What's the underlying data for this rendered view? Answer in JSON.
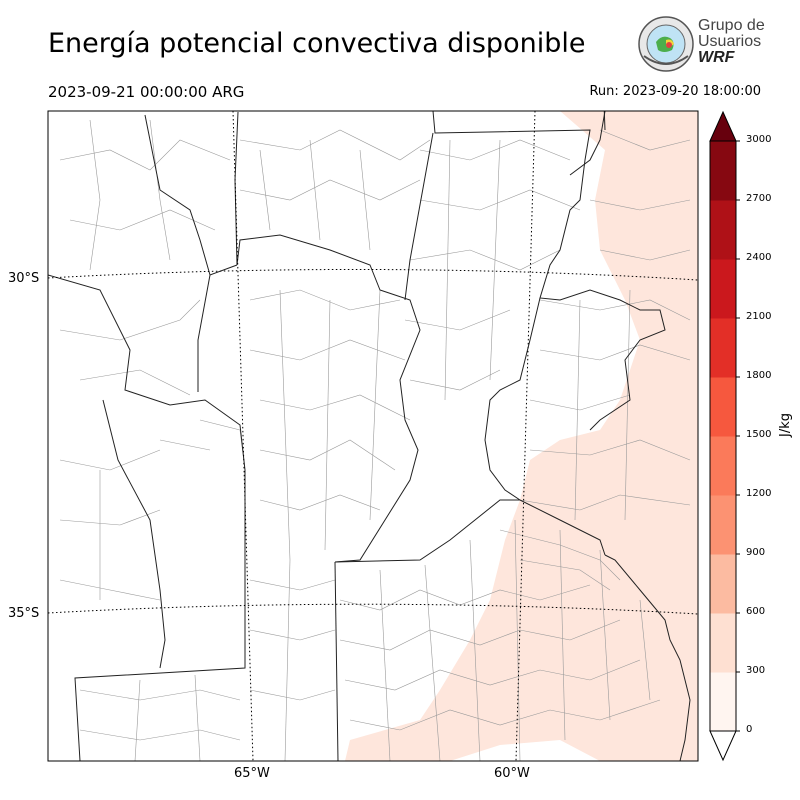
{
  "title": "Energía potencial convectiva disponible",
  "valid_time": "2023-09-21 00:00:00 ARG",
  "run_time": "Run: 2023-09-20 18:00:00",
  "logo": {
    "line1": "Grupo de",
    "line2": "Usuarios",
    "line3": "WRF"
  },
  "lat_labels": [
    "30°S",
    "35°S"
  ],
  "lon_labels": [
    "65°W",
    "60°W"
  ],
  "colorbar": {
    "unit": "J/kg",
    "ticks": [
      "0",
      "300",
      "600",
      "900",
      "1200",
      "1500",
      "1800",
      "2100",
      "2400",
      "2700",
      "3000"
    ],
    "colors": [
      "#fff5f0",
      "#fee0d2",
      "#fcbba1",
      "#fc9272",
      "#fb7a5a",
      "#f6583e",
      "#e32f27",
      "#cb181d",
      "#af1117",
      "#860811",
      "#67000d"
    ]
  }
}
